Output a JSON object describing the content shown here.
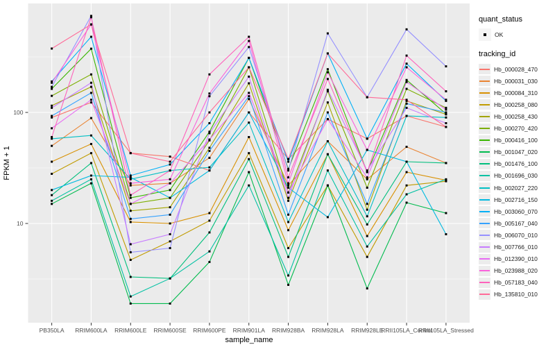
{
  "figure": {
    "background": "#ffffff",
    "panel_background": "#ebebeb",
    "gridline_color": "#ffffff",
    "tick_color": "#333333",
    "point_color": "#000000"
  },
  "axes": {
    "x": {
      "title": "sample_name",
      "tick_labels": [
        "PB350LA",
        "RRIM600LA",
        "RRIM600LE",
        "RRIM600SE",
        "RRIM600PE",
        "RRIM901LA",
        "RRIM928BA",
        "RRIM928LA",
        "RRIM928LE",
        "RRII105LA_Control",
        "RRII105LA_Stressed"
      ]
    },
    "y": {
      "title": "FPKM + 1",
      "scale": "log10",
      "tick_labels": [
        "100",
        "10"
      ],
      "tick_values": [
        100,
        10
      ],
      "minor_grid_values": [
        3.1623,
        31.623,
        316.23
      ]
    }
  },
  "legend": {
    "quant_status": {
      "title": "quant_status",
      "items": [
        {
          "label": "OK",
          "marker": "black-point"
        }
      ]
    },
    "tracking_id": {
      "title": "tracking_id"
    }
  },
  "chart_data": {
    "type": "line",
    "title": "",
    "xlabel": "sample_name",
    "ylabel": "FPKM + 1",
    "yscale": "log10",
    "ylim": [
      1.28,
      960
    ],
    "grid": true,
    "legend_position": "right",
    "point_marker": {
      "shape": "square",
      "color": "#000000"
    },
    "x_categories": [
      "PB350LA",
      "RRIM600LA",
      "RRIM600LE",
      "RRIM600SE",
      "RRIM600PE",
      "RRIM901LA",
      "RRIM928BA",
      "RRIM928LA",
      "RRIM928LE",
      "RRII105LA_Control",
      "RRII105LA_Stressed"
    ],
    "series": [
      {
        "name": "Hb_000028_470",
        "color": "#F8766D",
        "values": [
          90,
          123,
          43,
          40,
          30,
          100,
          38,
          87,
          58,
          93,
          74
        ]
      },
      {
        "name": "Hb_000031_030",
        "color": "#EA8331",
        "values": [
          50,
          89,
          22,
          23,
          39,
          132,
          22,
          55,
          25,
          49,
          35
        ]
      },
      {
        "name": "Hb_000084_310",
        "color": "#D89000",
        "values": [
          36,
          52,
          10.3,
          10,
          12.4,
          60,
          8.7,
          42,
          7.7,
          29,
          24.5
        ]
      },
      {
        "name": "Hb_000258_080",
        "color": "#C09B00",
        "values": [
          28,
          43,
          4.7,
          6.9,
          10.6,
          43,
          6,
          22,
          5,
          22,
          24
        ]
      },
      {
        "name": "Hb_000258_430",
        "color": "#A3A500",
        "values": [
          115,
          170,
          13,
          14,
          48,
          183,
          16,
          123,
          13.3,
          127,
          96
        ]
      },
      {
        "name": "Hb_000270_420",
        "color": "#7CAE00",
        "values": [
          141,
          220,
          15,
          17,
          56,
          255,
          19,
          155,
          21,
          163,
          110
        ]
      },
      {
        "name": "Hb_000416_100",
        "color": "#39B600",
        "values": [
          163,
          375,
          17,
          20,
          67,
          310,
          31,
          245,
          29,
          196,
          97
        ]
      },
      {
        "name": "Hb_001047_020",
        "color": "#00BB4E",
        "values": [
          15,
          23,
          1.9,
          1.9,
          4.5,
          29,
          2.8,
          22,
          2.6,
          15.4,
          12.4
        ]
      },
      {
        "name": "Hb_001476_100",
        "color": "#00BF7D",
        "values": [
          18,
          35,
          3.3,
          3.2,
          8.3,
          38,
          5,
          42,
          9.8,
          36,
          35
        ]
      },
      {
        "name": "Hb_001696_030",
        "color": "#00C1A3",
        "values": [
          16,
          25,
          2.2,
          3.2,
          5.6,
          22,
          3.4,
          30,
          6.2,
          18.3,
          25
        ]
      },
      {
        "name": "Hb_002027_220",
        "color": "#00BFC4",
        "values": [
          58,
          62,
          25,
          30,
          32,
          81,
          10.3,
          55,
          11.6,
          93,
          90
        ]
      },
      {
        "name": "Hb_002716_150",
        "color": "#00BAE0",
        "values": [
          20,
          27,
          26,
          17,
          30,
          100,
          21,
          11.4,
          46,
          36,
          8
        ]
      },
      {
        "name": "Hb_003060_070",
        "color": "#00B0F6",
        "values": [
          190,
          480,
          27,
          34,
          80,
          310,
          36,
          340,
          58,
          275,
          127
        ]
      },
      {
        "name": "Hb_005167_040",
        "color": "#35A2FF",
        "values": [
          93,
          150,
          11,
          12,
          45,
          140,
          12,
          100,
          15,
          120,
          100
        ]
      },
      {
        "name": "Hb_006070_010",
        "color": "#9590FF",
        "values": [
          170,
          740,
          5.5,
          6,
          140,
          388,
          30,
          515,
          137,
          560,
          260
        ]
      },
      {
        "name": "Hb_007766_010",
        "color": "#C77CFF",
        "values": [
          110,
          185,
          6.5,
          8,
          65,
          210,
          17,
          160,
          30,
          110,
          80
        ]
      },
      {
        "name": "Hb_012390_010",
        "color": "#E76BF3",
        "values": [
          72,
          130,
          15,
          23,
          57,
          150,
          19,
          87,
          26,
          188,
          106
        ]
      },
      {
        "name": "Hb_023988_020",
        "color": "#FA62DB",
        "values": [
          185,
          620,
          23,
          25,
          148,
          440,
          23,
          230,
          46,
          255,
          130
        ]
      },
      {
        "name": "Hb_057183_040",
        "color": "#FF62BC",
        "values": [
          60,
          720,
          18,
          30,
          220,
          480,
          26,
          200,
          29,
          325,
          155
        ]
      },
      {
        "name": "Hb_135810_010",
        "color": "#FF6A98",
        "values": [
          376,
          620,
          43,
          36,
          100,
          255,
          38,
          340,
          137,
          130,
          74
        ]
      }
    ]
  }
}
